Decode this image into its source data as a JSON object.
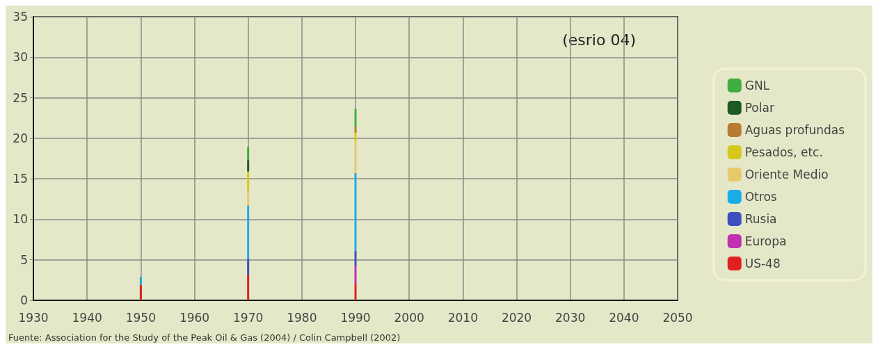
{
  "chart_data": {
    "type": "bar",
    "stacked": true,
    "x": [
      1950,
      1970,
      1990
    ],
    "series": [
      {
        "name": "US-48",
        "color": "#e02020",
        "values": [
          1.9,
          3.1,
          2.0
        ]
      },
      {
        "name": "Europa",
        "color": "#c030b0",
        "values": [
          0,
          0,
          2.3
        ]
      },
      {
        "name": "Rusia",
        "color": "#3e4fbf",
        "values": [
          0,
          2.0,
          1.8
        ]
      },
      {
        "name": "Otros",
        "color": "#1aaee8",
        "values": [
          1.0,
          6.6,
          9.6
        ]
      },
      {
        "name": "Oriente Medio",
        "color": "#e8c96a",
        "values": [
          0,
          1.9,
          4.0
        ]
      },
      {
        "name": "Pesados, etc.",
        "color": "#d6c81a",
        "values": [
          0,
          2.3,
          1.0
        ]
      },
      {
        "name": "Aguas profundas",
        "color": "#b87b32",
        "values": [
          0,
          0,
          0.7
        ]
      },
      {
        "name": "Polar",
        "color": "#1f5a24",
        "values": [
          0,
          1.4,
          0
        ]
      },
      {
        "name": "GNL",
        "color": "#3fae3f",
        "values": [
          0,
          1.6,
          2.2
        ]
      }
    ],
    "xlim": [
      1930,
      2050
    ],
    "xticks": [
      1930,
      1940,
      1950,
      1960,
      1970,
      1980,
      1990,
      2000,
      2010,
      2020,
      2030,
      2040,
      2050
    ],
    "ylim": [
      0,
      35
    ],
    "yticks": [
      0,
      5,
      10,
      15,
      20,
      25,
      30,
      35
    ],
    "grid": true,
    "legend": "right",
    "annotations": [
      "(esrio 04)",
      "Fuente: Association for the Study of the Peak Oil & Gas (2004) / Colin Campbell (2002)"
    ]
  }
}
